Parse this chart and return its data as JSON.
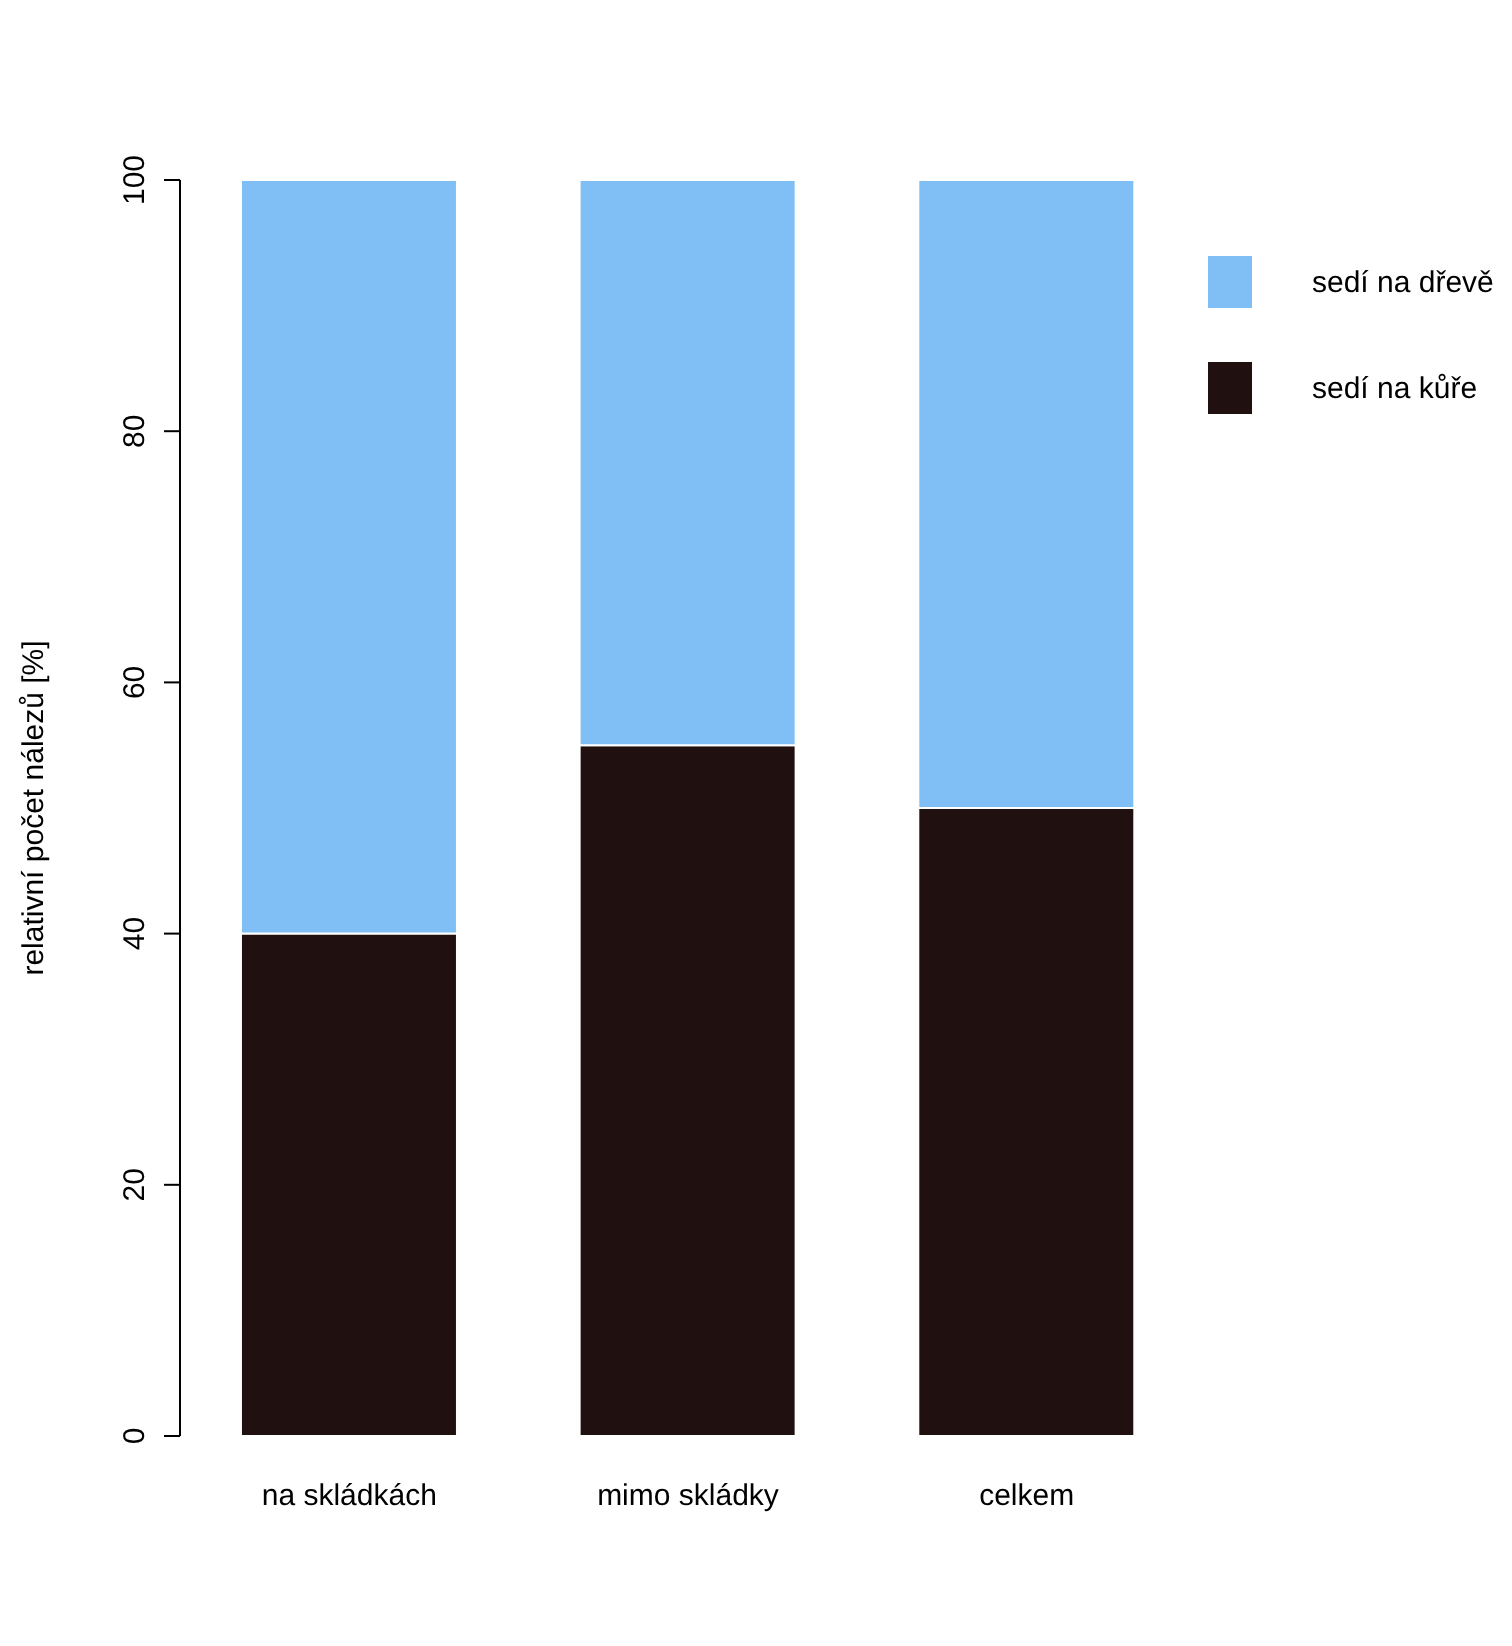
{
  "chart_data": {
    "type": "bar",
    "stacked": true,
    "ylabel": "relativní počet nálezů [%]",
    "categories": [
      "na skládkách",
      "mimo skládky",
      "celkem"
    ],
    "series": [
      {
        "name": "sedí na kůře",
        "color": "#201010",
        "values": [
          40,
          55,
          50
        ]
      },
      {
        "name": "sedí na dřevě",
        "color": "#80bff5",
        "values": [
          60,
          45,
          50
        ]
      }
    ],
    "ylim": [
      0,
      100
    ],
    "yticks": [
      0,
      20,
      40,
      60,
      80,
      100
    ],
    "legend": "top right",
    "grid": false
  }
}
